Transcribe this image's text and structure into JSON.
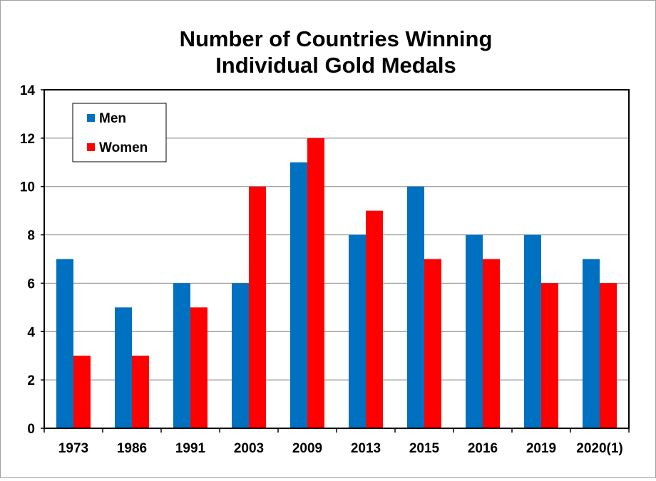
{
  "chart_data": {
    "type": "bar",
    "title": [
      "Number of Countries Winning",
      "Individual Gold Medals"
    ],
    "xlabel": "",
    "ylabel": "",
    "categories": [
      "1973",
      "1986",
      "1991",
      "2003",
      "2009",
      "2013",
      "2015",
      "2016",
      "2019",
      "2020(1)"
    ],
    "series": [
      {
        "name": "Men",
        "color": "#0070C0",
        "values": [
          7,
          5,
          6,
          6,
          11,
          8,
          10,
          8,
          8,
          7
        ]
      },
      {
        "name": "Women",
        "color": "#FF0000",
        "values": [
          3,
          3,
          5,
          10,
          12,
          9,
          7,
          7,
          6,
          6
        ]
      }
    ],
    "ylim": [
      0,
      14
    ],
    "yticks": [
      0,
      2,
      4,
      6,
      8,
      10,
      12,
      14
    ],
    "grid": true,
    "legend_position": "top-left"
  }
}
